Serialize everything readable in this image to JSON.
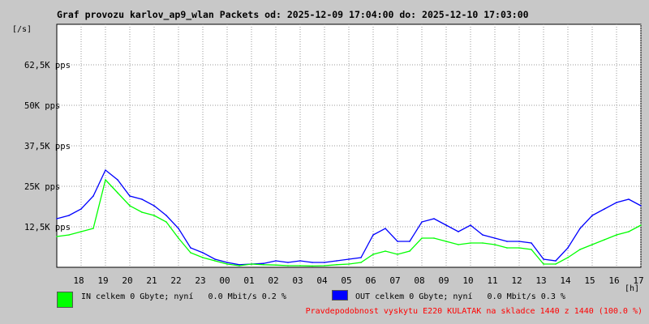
{
  "colors": {
    "background": "#c8c8c8",
    "plot": "#ffffff",
    "in_series": "#00ff00",
    "out_series": "#0000ff",
    "footer_text": "#ff0000"
  },
  "header": {
    "title": "Graf provozu karlov_ap9_wlan Packets od: 2025-12-09 17:04:00 do: 2025-12-10 17:03:00"
  },
  "legend": {
    "in_label": "IN celkem 0 Gbyte; nyní   0.0 Mbit/s 0.2 %",
    "out_label": "OUT celkem 0 Gbyte; nyní   0.0 Mbit/s 0.3 %"
  },
  "footer": {
    "text": "Pravdepodobnost vyskytu E220 KULATAK na skladce 1440 z 1440 (100.0 %)"
  },
  "chart_data": {
    "type": "line",
    "title": "Graf provozu karlov_ap9_wlan Packets od: 2025-12-09 17:04:00 do: 2025-12-10 17:03:00",
    "ylabel": "[/s]",
    "xlabel": "[h]",
    "ylim": [
      0,
      75000
    ],
    "y_ticks": [
      12500,
      25000,
      37500,
      50000,
      62500
    ],
    "y_tick_labels": [
      "12,5K pps",
      "25K pps",
      "37,5K pps",
      "50K pps",
      "62,5K pps"
    ],
    "x_tick_labels": [
      "18",
      "19",
      "20",
      "21",
      "22",
      "23",
      "00",
      "01",
      "02",
      "03",
      "04",
      "05",
      "06",
      "07",
      "08",
      "09",
      "10",
      "11",
      "12",
      "13",
      "14",
      "15",
      "16",
      "17"
    ],
    "grid": true,
    "legend": "bottom",
    "x": [
      "17:00",
      "17:30",
      "18:00",
      "18:30",
      "19:00",
      "19:30",
      "20:00",
      "20:30",
      "21:00",
      "21:30",
      "22:00",
      "22:30",
      "23:00",
      "23:30",
      "00:00",
      "00:30",
      "01:00",
      "01:30",
      "02:00",
      "02:30",
      "03:00",
      "03:30",
      "04:00",
      "04:30",
      "05:00",
      "05:30",
      "06:00",
      "06:30",
      "07:00",
      "07:30",
      "08:00",
      "08:30",
      "09:00",
      "09:30",
      "10:00",
      "10:30",
      "11:00",
      "11:30",
      "12:00",
      "12:30",
      "13:00",
      "13:30",
      "14:00",
      "14:30",
      "15:00",
      "15:30",
      "16:00",
      "16:30",
      "17:00"
    ],
    "series": [
      {
        "name": "IN",
        "values": [
          9500,
          10000,
          11000,
          12000,
          27000,
          23000,
          19000,
          17000,
          16000,
          14000,
          9000,
          4500,
          3000,
          2000,
          1000,
          500,
          1000,
          800,
          700,
          500,
          500,
          400,
          500,
          800,
          1000,
          1500,
          4000,
          5000,
          4000,
          5000,
          9000,
          9000,
          8000,
          7000,
          7500,
          7500,
          7000,
          6000,
          6000,
          5500,
          1000,
          1000,
          3000,
          5500,
          7000,
          8500,
          10000,
          11000,
          13000
        ]
      },
      {
        "name": "OUT",
        "values": [
          15000,
          16000,
          18000,
          22000,
          30000,
          27000,
          22000,
          21000,
          19000,
          16000,
          12000,
          6000,
          4500,
          2500,
          1500,
          800,
          1000,
          1200,
          2000,
          1500,
          2000,
          1500,
          1500,
          2000,
          2500,
          3000,
          10000,
          12000,
          8000,
          8000,
          14000,
          15000,
          13000,
          11000,
          13000,
          10000,
          9000,
          8000,
          8000,
          7500,
          2500,
          2000,
          6000,
          12000,
          16000,
          18000,
          20000,
          21000,
          19000
        ]
      }
    ]
  }
}
